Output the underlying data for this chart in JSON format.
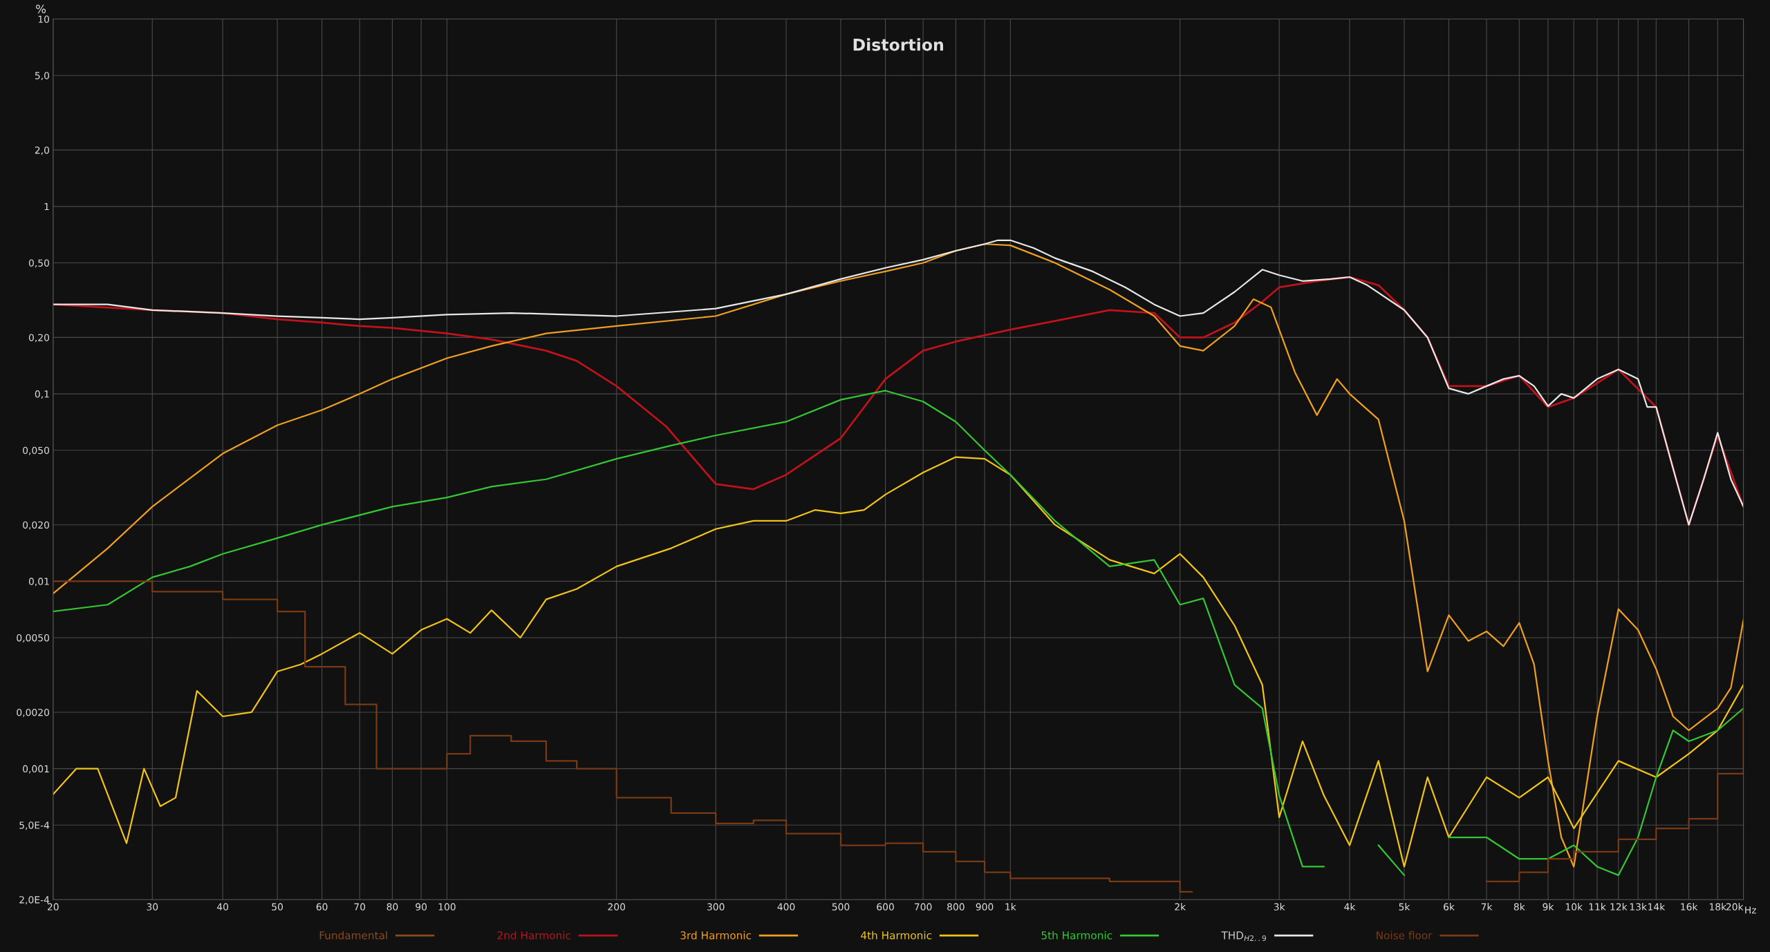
{
  "chart_data": {
    "type": "line",
    "title": "Distortion",
    "ylabel": "%",
    "log": "xy",
    "grid": true,
    "legend": "bottom",
    "line_style": "solid",
    "marker": "none",
    "xlim": [
      20,
      20000
    ],
    "ylim": [
      0.0002,
      10
    ],
    "xticks": [
      20,
      30,
      40,
      50,
      60,
      70,
      80,
      90,
      100,
      200,
      300,
      400,
      500,
      600,
      700,
      800,
      900,
      {
        "value": 1000,
        "label": "1k"
      },
      {
        "value": 2000,
        "label": "2k"
      },
      {
        "value": 3000,
        "label": "3k"
      },
      {
        "value": 4000,
        "label": "4k"
      },
      {
        "value": 5000,
        "label": "5k"
      },
      {
        "value": 6000,
        "label": "6k"
      },
      {
        "value": 7000,
        "label": "7k"
      },
      {
        "value": 8000,
        "label": "8k"
      },
      {
        "value": 9000,
        "label": "9k"
      },
      {
        "value": 10000,
        "label": "10k"
      },
      {
        "value": 11000,
        "label": "11k"
      },
      {
        "value": 12000,
        "label": "12k"
      },
      {
        "value": 13000,
        "label": "13k"
      },
      {
        "value": 14000,
        "label": "14k"
      },
      {
        "value": 16000,
        "label": "16k"
      },
      {
        "value": 18000,
        "label": "18k"
      },
      {
        "value": 20000,
        "label": "20k"
      }
    ],
    "xlabel": "Hz",
    "yticks": [
      {
        "value": 0.0002,
        "label": "2,0E-4"
      },
      {
        "value": 0.0005,
        "label": "5,0E-4"
      },
      {
        "value": 0.001,
        "label": "0,001"
      },
      {
        "value": 0.002,
        "label": "0,0020"
      },
      {
        "value": 0.005,
        "label": "0,0050"
      },
      {
        "value": 0.01,
        "label": "0,01"
      },
      {
        "value": 0.02,
        "label": "0,020"
      },
      {
        "value": 0.05,
        "label": "0,050"
      },
      {
        "value": 0.1,
        "label": "0,1"
      },
      {
        "value": 0.2,
        "label": "0,20"
      },
      {
        "value": 0.5,
        "label": "0,50"
      },
      1,
      {
        "value": 2,
        "label": "2,0"
      },
      {
        "value": 5,
        "label": "5,0"
      },
      10
    ],
    "series": [
      {
        "name": "Fundamental",
        "color": "#8b4a20"
      },
      {
        "name": "2nd Harmonic",
        "color": "#c0121a",
        "x": [
          20,
          30,
          40,
          50,
          60,
          70,
          80,
          100,
          120,
          150,
          170,
          200,
          245,
          300,
          350,
          400,
          500,
          600,
          700,
          800,
          1000,
          1200,
          1500,
          1800,
          2000,
          2200,
          2500,
          2800,
          3000,
          3500,
          4000,
          4500,
          5000,
          5500,
          6000,
          7000,
          8000,
          9000,
          10000,
          12000,
          14000,
          16000,
          18000,
          20000
        ],
        "values": [
          0.3,
          0.28,
          0.27,
          0.25,
          0.24,
          0.23,
          0.225,
          0.21,
          0.195,
          0.17,
          0.15,
          0.11,
          0.067,
          0.033,
          0.031,
          0.037,
          0.058,
          0.12,
          0.17,
          0.19,
          0.22,
          0.245,
          0.28,
          0.27,
          0.2,
          0.2,
          0.24,
          0.31,
          0.37,
          0.4,
          0.42,
          0.38,
          0.28,
          0.2,
          0.11,
          0.11,
          0.125,
          0.085,
          0.095,
          0.135,
          0.085,
          0.02,
          0.06,
          0.025
        ]
      },
      {
        "name": "3rd Harmonic",
        "color": "#f0a020",
        "x": [
          20,
          25,
          30,
          40,
          50,
          60,
          70,
          80,
          100,
          120,
          150,
          200,
          300,
          400,
          500,
          600,
          700,
          800,
          900,
          1000,
          1200,
          1500,
          1800,
          2000,
          2200,
          2500,
          2700,
          2900,
          3200,
          3500,
          3800,
          4000,
          4500,
          5000,
          5500,
          6000,
          6500,
          7000,
          7500,
          8000,
          8500,
          9000,
          9500,
          10000,
          11000,
          12000,
          13000,
          14000,
          15000,
          16000,
          18000,
          19000,
          20000
        ],
        "values": [
          0.0086,
          0.015,
          0.025,
          0.048,
          0.068,
          0.082,
          0.1,
          0.12,
          0.155,
          0.18,
          0.21,
          0.23,
          0.26,
          0.34,
          0.4,
          0.45,
          0.5,
          0.58,
          0.63,
          0.62,
          0.5,
          0.36,
          0.26,
          0.18,
          0.17,
          0.23,
          0.32,
          0.29,
          0.13,
          0.077,
          0.12,
          0.1,
          0.073,
          0.021,
          0.0033,
          0.0066,
          0.0048,
          0.0054,
          0.0045,
          0.006,
          0.0036,
          0.0011,
          0.00043,
          0.0003,
          0.0019,
          0.0071,
          0.0055,
          0.0034,
          0.0019,
          0.0016,
          0.0021,
          0.0027,
          0.0062
        ]
      },
      {
        "name": "4th Harmonic",
        "color": "#f2c418",
        "x": [
          20,
          22,
          24,
          27,
          29,
          31,
          33,
          36,
          40,
          45,
          50,
          55,
          60,
          70,
          80,
          90,
          100,
          110,
          120,
          135,
          150,
          170,
          200,
          250,
          300,
          350,
          400,
          450,
          500,
          550,
          600,
          700,
          800,
          900,
          1000,
          1200,
          1500,
          1800,
          2000,
          2200,
          2500,
          2800,
          3000,
          3300,
          3600,
          4000,
          4500,
          5000,
          5500,
          6000,
          7000,
          8000,
          9000,
          10000,
          12000,
          14000,
          16000,
          18000,
          20000
        ],
        "values": [
          0.00073,
          0.001,
          0.001,
          0.0004,
          0.001,
          0.00063,
          0.0007,
          0.0026,
          0.0019,
          0.002,
          0.0033,
          0.0036,
          0.0041,
          0.0053,
          0.0041,
          0.0055,
          0.0063,
          0.0053,
          0.007,
          0.005,
          0.008,
          0.0091,
          0.012,
          0.015,
          0.019,
          0.021,
          0.021,
          0.024,
          0.023,
          0.024,
          0.029,
          0.038,
          0.046,
          0.045,
          0.037,
          0.02,
          0.013,
          0.011,
          0.014,
          0.0105,
          0.0058,
          0.0028,
          0.00055,
          0.0014,
          0.00072,
          0.00039,
          0.0011,
          0.0003,
          0.0009,
          0.00043,
          0.0009,
          0.0007,
          0.0009,
          0.00048,
          0.0011,
          0.0009,
          0.0012,
          0.0016,
          0.0028
        ]
      },
      {
        "name": "5th Harmonic",
        "color": "#33c833",
        "x": [
          20,
          25,
          30,
          35,
          40,
          50,
          60,
          80,
          100,
          120,
          150,
          200,
          250,
          300,
          400,
          500,
          600,
          700,
          800,
          900,
          1000,
          1200,
          1500,
          1800,
          2000,
          2200,
          2500,
          2800,
          3000,
          3300,
          3600,
          4000,
          4500,
          5000,
          5500,
          6000,
          7000,
          8000,
          9000,
          10000,
          11000,
          12000,
          13000,
          14000,
          15000,
          16000,
          18000,
          20000
        ],
        "values": [
          0.0069,
          0.0075,
          0.0105,
          0.012,
          0.014,
          0.017,
          0.02,
          0.025,
          0.028,
          0.032,
          0.035,
          0.045,
          0.053,
          0.06,
          0.071,
          0.093,
          0.104,
          0.091,
          0.071,
          0.05,
          0.037,
          0.021,
          0.012,
          0.013,
          0.0075,
          0.0081,
          0.0028,
          0.0021,
          0.00072,
          0.0003,
          0.0003,
          null,
          0.00039,
          0.00027,
          null,
          0.00043,
          0.00043,
          0.00033,
          0.00033,
          0.00039,
          0.0003,
          0.00027,
          0.00043,
          0.0009,
          0.0016,
          0.0014,
          0.0016,
          0.0021
        ]
      },
      {
        "name": "THD$_{H2..9}$",
        "color": "#e8e8e8",
        "x": [
          20,
          25,
          30,
          40,
          50,
          60,
          70,
          80,
          100,
          130,
          200,
          300,
          400,
          500,
          600,
          700,
          800,
          900,
          950,
          1000,
          1100,
          1200,
          1400,
          1600,
          1800,
          2000,
          2200,
          2500,
          2800,
          3000,
          3300,
          3700,
          4000,
          4300,
          5000,
          5500,
          6000,
          6500,
          7000,
          7500,
          8000,
          8500,
          9000,
          9500,
          10000,
          11000,
          12000,
          13000,
          13500,
          14000,
          15000,
          16000,
          17000,
          18000,
          19000,
          20000
        ],
        "values": [
          0.3,
          0.3,
          0.28,
          0.27,
          0.26,
          0.255,
          0.25,
          0.255,
          0.265,
          0.27,
          0.26,
          0.285,
          0.34,
          0.41,
          0.47,
          0.52,
          0.58,
          0.63,
          0.66,
          0.66,
          0.6,
          0.53,
          0.45,
          0.37,
          0.3,
          0.26,
          0.27,
          0.35,
          0.46,
          0.43,
          0.4,
          0.41,
          0.42,
          0.38,
          0.28,
          0.2,
          0.107,
          0.1,
          0.11,
          0.12,
          0.125,
          0.11,
          0.086,
          0.1,
          0.095,
          0.12,
          0.135,
          0.12,
          0.085,
          0.085,
          0.04,
          0.02,
          0.035,
          0.062,
          0.035,
          0.025
        ]
      },
      {
        "name": "Noise floor",
        "color": "#7a3a14",
        "type": "step",
        "x": [
          20,
          30,
          40,
          45,
          50,
          55,
          56,
          65,
          66,
          74,
          75,
          100,
          110,
          130,
          150,
          170,
          200,
          250,
          300,
          350,
          400,
          500,
          600,
          700,
          800,
          900,
          1000,
          1500,
          2000,
          2100,
          7000,
          8000,
          9000,
          10000,
          12000,
          14000,
          16000,
          18000,
          20000
        ],
        "values": [
          0.01,
          0.0088,
          0.008,
          0.008,
          0.0069,
          0.0069,
          0.0035,
          0.0035,
          0.0022,
          0.0022,
          0.001,
          0.0012,
          0.0015,
          0.0014,
          0.0011,
          0.001,
          0.0007,
          0.00058,
          0.00051,
          0.00053,
          0.00045,
          0.00039,
          0.0004,
          0.00036,
          0.00032,
          0.00028,
          0.00026,
          0.00025,
          0.00022,
          null,
          0.00025,
          0.00028,
          0.00033,
          0.00036,
          0.00042,
          0.00048,
          0.00054,
          0.00094,
          0.0021
        ]
      }
    ]
  }
}
